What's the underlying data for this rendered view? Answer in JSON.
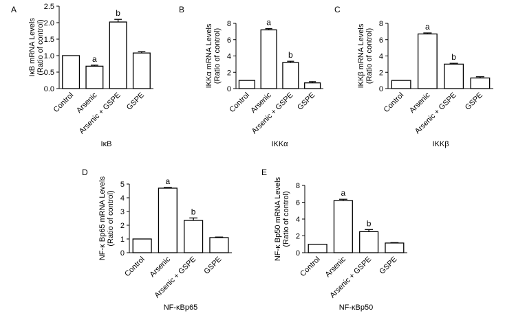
{
  "chart_data": [
    {
      "type": "bar",
      "panel": "A",
      "title": "IκB",
      "ylabel": [
        "IκB mRNA Levels",
        "(Ratio of control)"
      ],
      "categories": [
        "Control",
        "Arsenic",
        "Arsenic + GSPE",
        "GSPE"
      ],
      "values": [
        1.0,
        0.68,
        2.02,
        1.08
      ],
      "errors": [
        0.0,
        0.03,
        0.08,
        0.04
      ],
      "labels": [
        "",
        "a",
        "b",
        ""
      ],
      "ylim": [
        0,
        2.5
      ],
      "yticks": [
        0,
        0.5,
        1.0,
        1.5,
        2.0,
        2.5
      ],
      "ytick_labels": [
        "0.0",
        "0.5",
        "1.0",
        "1.5",
        "2.0",
        "2.5"
      ]
    },
    {
      "type": "bar",
      "panel": "B",
      "title": "IKKα",
      "ylabel": [
        "IKKα mRNA Levels",
        "(Ratio of control)"
      ],
      "categories": [
        "Control",
        "Arsenic",
        "Arsenic + GSPE",
        "GSPE"
      ],
      "values": [
        1.0,
        7.2,
        3.2,
        0.7
      ],
      "errors": [
        0.0,
        0.15,
        0.15,
        0.15
      ],
      "labels": [
        "",
        "a",
        "b",
        ""
      ],
      "ylim": [
        0,
        8
      ],
      "yticks": [
        0,
        2,
        4,
        6,
        8
      ],
      "ytick_labels": [
        "0",
        "2",
        "4",
        "6",
        "8"
      ]
    },
    {
      "type": "bar",
      "panel": "C",
      "title": "IKKβ",
      "ylabel": [
        "IKKβ mRNA Levels",
        "(Ratio of control)"
      ],
      "categories": [
        "Control",
        "Arsenic",
        "Arsenic + GSPE",
        "GSPE"
      ],
      "values": [
        1.0,
        6.7,
        3.0,
        1.3
      ],
      "errors": [
        0.0,
        0.12,
        0.1,
        0.15
      ],
      "labels": [
        "",
        "a",
        "b",
        ""
      ],
      "ylim": [
        0,
        8
      ],
      "yticks": [
        0,
        2,
        4,
        6,
        8
      ],
      "ytick_labels": [
        "0",
        "2",
        "4",
        "6",
        "8"
      ]
    },
    {
      "type": "bar",
      "panel": "D",
      "title": "NF-κBp65",
      "ylabel": [
        "NF-κ Bp65 mRNA Levels",
        "(Ratio of control)"
      ],
      "categories": [
        "Control",
        "Arsenic",
        "Arsenic + GSPE",
        "GSPE"
      ],
      "values": [
        1.0,
        4.7,
        2.35,
        1.1
      ],
      "errors": [
        0.0,
        0.05,
        0.18,
        0.04
      ],
      "labels": [
        "",
        "a",
        "b",
        ""
      ],
      "ylim": [
        0,
        5
      ],
      "yticks": [
        0,
        1,
        2,
        3,
        4,
        5
      ],
      "ytick_labels": [
        "0",
        "1",
        "2",
        "3",
        "4",
        "5"
      ]
    },
    {
      "type": "bar",
      "panel": "E",
      "title": "NF-κBp50",
      "ylabel": [
        "NF-κ Bp50 mRNA Levels",
        "(Ratio of control)"
      ],
      "categories": [
        "Control",
        "Arsenic",
        "Arsenic + GSPE",
        "GSPE"
      ],
      "values": [
        1.0,
        6.2,
        2.5,
        1.15
      ],
      "errors": [
        0.0,
        0.15,
        0.25,
        0.05
      ],
      "labels": [
        "",
        "a",
        "b",
        ""
      ],
      "ylim": [
        0,
        8
      ],
      "yticks": [
        0,
        2,
        4,
        6,
        8
      ],
      "ytick_labels": [
        "0",
        "2",
        "4",
        "6",
        "8"
      ]
    }
  ]
}
